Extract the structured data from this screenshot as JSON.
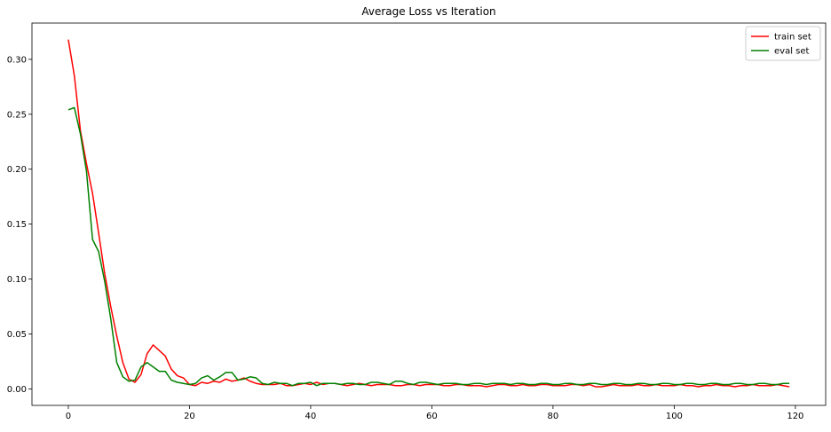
{
  "chart_data": {
    "type": "line",
    "title": "Average Loss vs Iteration",
    "xlabel": "",
    "ylabel": "",
    "xlim": [
      -6,
      125
    ],
    "ylim": [
      -0.015,
      0.333
    ],
    "xticks": [
      0,
      20,
      40,
      60,
      80,
      100,
      120
    ],
    "yticks": [
      0.0,
      0.05,
      0.1,
      0.15,
      0.2,
      0.25,
      0.3
    ],
    "ytick_labels": [
      "0.00",
      "0.05",
      "0.10",
      "0.15",
      "0.20",
      "0.25",
      "0.30"
    ],
    "grid": false,
    "legend_position": "top-right",
    "series": [
      {
        "name": "train set",
        "color": "#ff0000",
        "values": [
          0.318,
          0.285,
          0.235,
          0.205,
          0.178,
          0.142,
          0.105,
          0.075,
          0.048,
          0.024,
          0.009,
          0.006,
          0.013,
          0.032,
          0.04,
          0.035,
          0.03,
          0.018,
          0.012,
          0.01,
          0.004,
          0.003,
          0.006,
          0.005,
          0.007,
          0.006,
          0.009,
          0.007,
          0.008,
          0.01,
          0.007,
          0.005,
          0.004,
          0.004,
          0.004,
          0.005,
          0.003,
          0.003,
          0.004,
          0.005,
          0.004,
          0.006,
          0.004,
          0.005,
          0.005,
          0.004,
          0.003,
          0.004,
          0.005,
          0.004,
          0.003,
          0.004,
          0.004,
          0.004,
          0.003,
          0.003,
          0.004,
          0.004,
          0.003,
          0.004,
          0.004,
          0.004,
          0.003,
          0.003,
          0.004,
          0.004,
          0.003,
          0.003,
          0.003,
          0.002,
          0.003,
          0.004,
          0.004,
          0.003,
          0.003,
          0.004,
          0.003,
          0.003,
          0.004,
          0.004,
          0.003,
          0.003,
          0.003,
          0.004,
          0.004,
          0.003,
          0.004,
          0.002,
          0.002,
          0.003,
          0.004,
          0.003,
          0.003,
          0.003,
          0.004,
          0.003,
          0.003,
          0.004,
          0.003,
          0.003,
          0.003,
          0.004,
          0.003,
          0.003,
          0.002,
          0.003,
          0.003,
          0.004,
          0.003,
          0.003,
          0.002,
          0.003,
          0.003,
          0.004,
          0.003,
          0.003,
          0.003,
          0.004,
          0.003,
          0.002
        ]
      },
      {
        "name": "eval set",
        "color": "#008000",
        "values": [
          0.254,
          0.256,
          0.232,
          0.198,
          0.136,
          0.125,
          0.098,
          0.064,
          0.024,
          0.011,
          0.007,
          0.008,
          0.02,
          0.024,
          0.02,
          0.016,
          0.016,
          0.008,
          0.006,
          0.005,
          0.004,
          0.005,
          0.01,
          0.012,
          0.008,
          0.011,
          0.015,
          0.015,
          0.008,
          0.009,
          0.011,
          0.01,
          0.005,
          0.004,
          0.006,
          0.005,
          0.005,
          0.003,
          0.005,
          0.005,
          0.006,
          0.003,
          0.005,
          0.005,
          0.005,
          0.004,
          0.005,
          0.005,
          0.004,
          0.004,
          0.006,
          0.006,
          0.005,
          0.004,
          0.007,
          0.007,
          0.005,
          0.004,
          0.006,
          0.006,
          0.005,
          0.004,
          0.005,
          0.005,
          0.005,
          0.004,
          0.004,
          0.005,
          0.005,
          0.004,
          0.005,
          0.005,
          0.005,
          0.004,
          0.005,
          0.005,
          0.004,
          0.004,
          0.005,
          0.005,
          0.004,
          0.004,
          0.005,
          0.005,
          0.004,
          0.004,
          0.005,
          0.005,
          0.004,
          0.004,
          0.005,
          0.005,
          0.004,
          0.004,
          0.005,
          0.005,
          0.004,
          0.004,
          0.005,
          0.005,
          0.004,
          0.004,
          0.005,
          0.005,
          0.004,
          0.004,
          0.005,
          0.005,
          0.004,
          0.004,
          0.005,
          0.005,
          0.004,
          0.004,
          0.005,
          0.005,
          0.004,
          0.004,
          0.005,
          0.005
        ]
      }
    ]
  }
}
